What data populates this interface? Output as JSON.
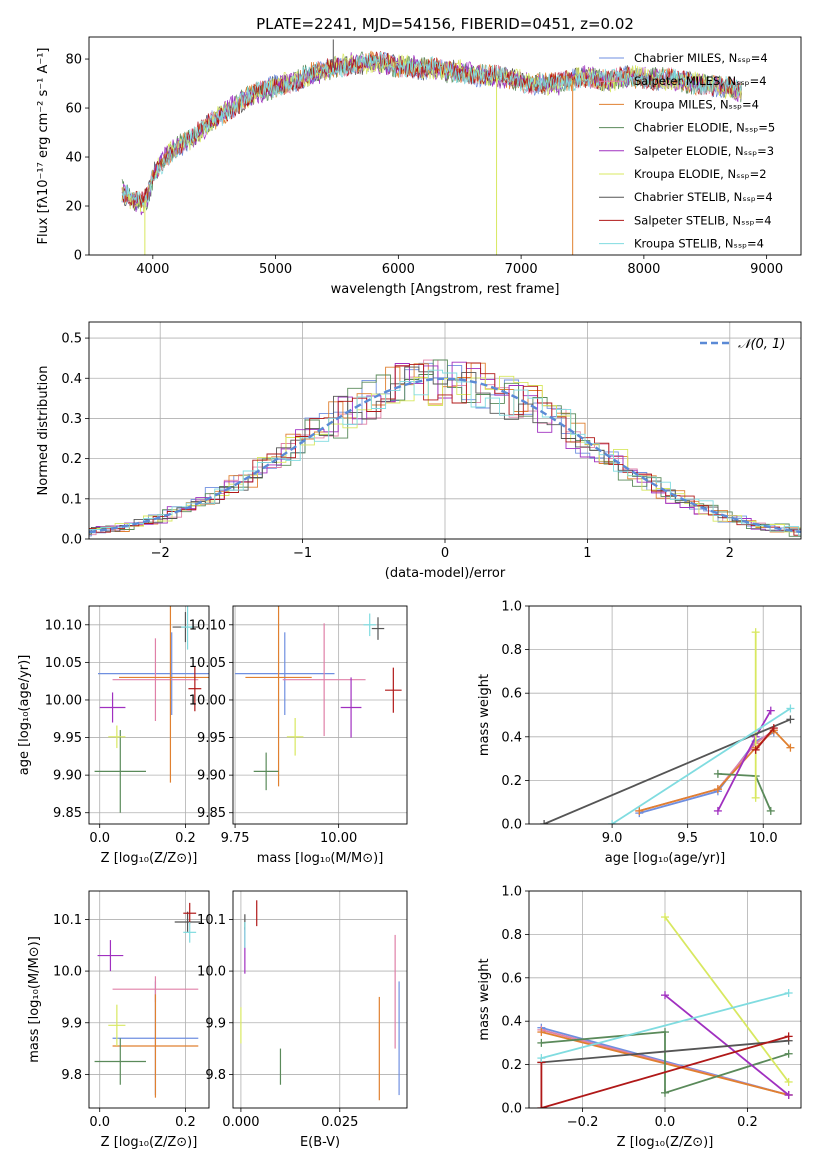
{
  "figure_title": "PLATE=2241, MJD=54156, FIBERID=0451, z=0.02",
  "colors": [
    "#6f8fe0",
    "#e080a8",
    "#e08030",
    "#5a8a5a",
    "#a030c0",
    "#d8e860",
    "#555555",
    "#b01818",
    "#80dce0"
  ],
  "chart_data": [
    {
      "id": "spectrum",
      "type": "line",
      "title": "PLATE=2241, MJD=54156, FIBERID=0451, z=0.02",
      "xlabel": "wavelength [Angstrom, rest frame]",
      "ylabel": "Flux [fλ10⁻¹⁷ erg cm⁻² s⁻¹ A⁻¹]",
      "xlim": [
        3480,
        9280
      ],
      "ylim": [
        0,
        89
      ],
      "xticks": [
        4000,
        5000,
        6000,
        7000,
        8000,
        9000
      ],
      "yticks": [
        0,
        20,
        40,
        60,
        80
      ],
      "legend_position": "top-right",
      "series": [
        {
          "name": "Chabrier MILES, Nₛₛₚ=4"
        },
        {
          "name": "Salpeter MILES, Nₛₛₚ=4"
        },
        {
          "name": "Kroupa MILES, Nₛₛₚ=4"
        },
        {
          "name": "Chabrier ELODIE, Nₛₛₚ=5"
        },
        {
          "name": "Salpeter ELODIE, Nₛₛₚ=3"
        },
        {
          "name": "Kroupa ELODIE, Nₛₛₚ=2"
        },
        {
          "name": "Chabrier STELIB, Nₛₛₚ=4"
        },
        {
          "name": "Salpeter STELIB, Nₛₛₚ=4"
        },
        {
          "name": "Kroupa STELIB, Nₛₛₚ=4"
        }
      ],
      "continuum": {
        "x": [
          3750,
          3850,
          3920,
          3960,
          4000,
          4100,
          4200,
          4300,
          4400,
          4500,
          4600,
          4700,
          4800,
          4900,
          5000,
          5100,
          5200,
          5300,
          5400,
          5500,
          5600,
          5700,
          5800,
          5900,
          6000,
          6100,
          6200,
          6300,
          6400,
          6500,
          6600,
          6700,
          6800,
          6900,
          7000,
          7100,
          7200,
          7300,
          7400,
          7500,
          7600,
          7700,
          7800,
          7900,
          8000,
          8100,
          8200,
          8300,
          8400,
          8500,
          8600,
          8700,
          8800
        ],
        "y": [
          26,
          22,
          21,
          24,
          32,
          40,
          44,
          47,
          51,
          55,
          59,
          62,
          65,
          67,
          69,
          70,
          72,
          74,
          75,
          77,
          78,
          78,
          79,
          78,
          77,
          77,
          76,
          76,
          75,
          75,
          74,
          73,
          73,
          72,
          71,
          70,
          70,
          70,
          71,
          73,
          72,
          71,
          72,
          73,
          72,
          72,
          72,
          71,
          70,
          70,
          69,
          68,
          67
        ]
      },
      "dips": [
        {
          "x": 3935,
          "y": 0
        },
        {
          "x": 6800,
          "y": 0
        },
        {
          "x": 7420,
          "y": 0
        },
        {
          "x": 5470,
          "y": 88
        }
      ]
    },
    {
      "id": "residuals",
      "type": "line",
      "xlabel": "(data-model)/error",
      "ylabel": "Normed distribution",
      "xlim": [
        -2.5,
        2.5
      ],
      "ylim": [
        0,
        0.54
      ],
      "xticks": [
        -2,
        -1,
        0,
        1,
        2
      ],
      "yticks": [
        0.0,
        0.1,
        0.2,
        0.3,
        0.4,
        0.5
      ],
      "legend": "𝒩(0, 1)",
      "legend_position": "top-right",
      "bin_width": 0.1
    },
    {
      "id": "age_vs_Z",
      "type": "scatter",
      "xlabel": "Z [log₁₀(Z/Z⊙)]",
      "ylabel": "age  [log₁₀(age/yr)]",
      "xlim": [
        -0.025,
        0.255
      ],
      "ylim": [
        9.835,
        10.125
      ],
      "xticks": [
        0.0,
        0.2
      ],
      "yticks": [
        9.85,
        9.9,
        9.95,
        10.0,
        10.05,
        10.1
      ],
      "points": [
        {
          "x": 0.168,
          "y": 10.035,
          "xerr": 0.172,
          "yerr": 0.055
        },
        {
          "x": 0.13,
          "y": 10.027,
          "xerr": 0.1,
          "yerr": 0.055
        },
        {
          "x": 0.165,
          "y": 10.03,
          "xerr": 0.12,
          "yerr": 0.14
        },
        {
          "x": 0.048,
          "y": 9.905,
          "xerr": 0.06,
          "yerr": 0.055
        },
        {
          "x": 0.03,
          "y": 9.99,
          "xerr": 0.03,
          "yerr": 0.02
        },
        {
          "x": 0.04,
          "y": 9.951,
          "xerr": 0.02,
          "yerr": 0.015
        },
        {
          "x": 0.2,
          "y": 10.097,
          "xerr": 0.03,
          "yerr": 0.02
        },
        {
          "x": 0.222,
          "y": 10.015,
          "xerr": 0.015,
          "yerr": 0.03
        },
        {
          "x": 0.205,
          "y": 10.097,
          "xerr": 0.015,
          "yerr": 0.03
        }
      ]
    },
    {
      "id": "age_vs_mass",
      "type": "scatter",
      "xlabel": "mass [log₁₀(M/M⊙)]",
      "ylabel": "",
      "xlim": [
        9.745,
        10.165
      ],
      "ylim": [
        9.835,
        10.125
      ],
      "xticks": [
        9.75,
        10.0
      ],
      "yticks": [
        9.85,
        9.9,
        9.95,
        10.0,
        10.05,
        10.1
      ],
      "points": [
        {
          "x": 9.87,
          "y": 10.035,
          "xerr": 0.12,
          "yerr": 0.055
        },
        {
          "x": 9.965,
          "y": 10.027,
          "xerr": 0.1,
          "yerr": 0.075
        },
        {
          "x": 9.855,
          "y": 10.03,
          "xerr": 0.08,
          "yerr": 0.145
        },
        {
          "x": 9.825,
          "y": 9.905,
          "xerr": 0.03,
          "yerr": 0.025
        },
        {
          "x": 10.03,
          "y": 9.99,
          "xerr": 0.025,
          "yerr": 0.04
        },
        {
          "x": 9.895,
          "y": 9.951,
          "xerr": 0.02,
          "yerr": 0.025
        },
        {
          "x": 10.095,
          "y": 10.095,
          "xerr": 0.015,
          "yerr": 0.015
        },
        {
          "x": 10.132,
          "y": 10.013,
          "xerr": 0.02,
          "yerr": 0.03
        },
        {
          "x": 10.075,
          "y": 10.1,
          "xerr": 0.015,
          "yerr": 0.015
        }
      ]
    },
    {
      "id": "weight_vs_age",
      "type": "line",
      "xlabel": "age  [log₁₀(age/yr)]",
      "ylabel": "mass weight",
      "xlim": [
        8.45,
        10.25
      ],
      "ylim": [
        0,
        1
      ],
      "xticks": [
        9.0,
        9.5,
        10.0
      ],
      "yticks": [
        0.0,
        0.2,
        0.4,
        0.6,
        0.8,
        1.0
      ],
      "series": [
        {
          "x": [
            9.18,
            9.7,
            9.95,
            10.07
          ],
          "y": [
            0.05,
            0.15,
            0.38,
            0.42
          ]
        },
        {
          "x": [
            9.18,
            9.7,
            9.95,
            10.07
          ],
          "y": [
            0.06,
            0.16,
            0.37,
            0.43
          ]
        },
        {
          "x": [
            9.18,
            9.7,
            9.95,
            10.07,
            10.18
          ],
          "y": [
            0.06,
            0.16,
            0.35,
            0.43,
            0.35
          ]
        },
        {
          "x": [
            9.7,
            9.95,
            10.05
          ],
          "y": [
            0.23,
            0.22,
            0.06
          ]
        },
        {
          "x": [
            9.7,
            9.95,
            10.05
          ],
          "y": [
            0.06,
            0.4,
            0.52
          ]
        },
        {
          "x": [
            9.95,
            9.95
          ],
          "y": [
            0.12,
            0.88
          ]
        },
        {
          "x": [
            8.55,
            10.18
          ],
          "y": [
            0.0,
            0.48
          ]
        },
        {
          "x": [
            9.95,
            10.07
          ],
          "y": [
            0.34,
            0.44
          ]
        },
        {
          "x": [
            9.0,
            10.18
          ],
          "y": [
            0.0,
            0.53
          ]
        }
      ]
    },
    {
      "id": "mass_vs_Z",
      "type": "scatter",
      "xlabel": "Z [log₁₀(Z/Z⊙)]",
      "ylabel": "mass [log₁₀(M/M⊙)]",
      "xlim": [
        -0.025,
        0.255
      ],
      "ylim": [
        9.735,
        10.155
      ],
      "xticks": [
        0.0,
        0.2
      ],
      "yticks": [
        9.8,
        9.9,
        10.0,
        10.1
      ],
      "points": [
        {
          "x": 0.13,
          "y": 9.87,
          "xerr": 0.1,
          "yerr": 0.11
        },
        {
          "x": 0.13,
          "y": 9.965,
          "xerr": 0.1,
          "yerr": 0.025
        },
        {
          "x": 0.13,
          "y": 9.855,
          "xerr": 0.1,
          "yerr": 0.1
        },
        {
          "x": 0.048,
          "y": 9.825,
          "xerr": 0.06,
          "yerr": 0.045
        },
        {
          "x": 0.025,
          "y": 10.03,
          "xerr": 0.03,
          "yerr": 0.03
        },
        {
          "x": 0.04,
          "y": 9.895,
          "xerr": 0.02,
          "yerr": 0.04
        },
        {
          "x": 0.205,
          "y": 10.095,
          "xerr": 0.03,
          "yerr": 0.02
        },
        {
          "x": 0.21,
          "y": 10.112,
          "xerr": 0.015,
          "yerr": 0.02
        },
        {
          "x": 0.21,
          "y": 10.075,
          "xerr": 0.015,
          "yerr": 0.02
        }
      ]
    },
    {
      "id": "mass_vs_EBV",
      "type": "scatter",
      "xlabel": "E(B-V)",
      "ylabel": "",
      "xlim": [
        -0.002,
        0.042
      ],
      "ylim": [
        9.735,
        10.155
      ],
      "xticks": [
        0.0,
        0.025
      ],
      "yticks": [
        9.8,
        9.9,
        10.0,
        10.1
      ],
      "points": [
        {
          "x": 0.04,
          "y": 9.87,
          "yerr": 0.11
        },
        {
          "x": 0.039,
          "y": 9.96,
          "yerr": 0.11
        },
        {
          "x": 0.035,
          "y": 9.85,
          "yerr": 0.1
        },
        {
          "x": 0.01,
          "y": 9.815,
          "yerr": 0.035
        },
        {
          "x": 0.001,
          "y": 10.04,
          "yerr": 0.045
        },
        {
          "x": 0.0,
          "y": 9.895,
          "yerr": 0.035
        },
        {
          "x": 0.001,
          "y": 10.095,
          "yerr": 0.015
        },
        {
          "x": 0.004,
          "y": 10.112,
          "yerr": 0.025
        },
        {
          "x": 0.001,
          "y": 10.07,
          "yerr": 0.025
        }
      ]
    },
    {
      "id": "weight_vs_Z",
      "type": "line",
      "xlabel": "Z [log₁₀(Z/Z⊙)]",
      "ylabel": "mass weight",
      "xlim": [
        -0.33,
        0.33
      ],
      "ylim": [
        0,
        1
      ],
      "xticks": [
        -0.2,
        0.0,
        0.2
      ],
      "yticks": [
        0.0,
        0.2,
        0.4,
        0.6,
        0.8,
        1.0
      ],
      "series": [
        {
          "x": [
            -0.3,
            0.3
          ],
          "y": [
            0.37,
            0.06
          ]
        },
        {
          "x": [
            -0.3,
            0.3
          ],
          "y": [
            0.36,
            0.06
          ]
        },
        {
          "x": [
            -0.3,
            0.3
          ],
          "y": [
            0.35,
            0.06
          ]
        },
        {
          "x": [
            -0.3,
            0.0,
            0.0,
            0.3
          ],
          "y": [
            0.3,
            0.35,
            0.07,
            0.25
          ]
        },
        {
          "x": [
            0.0,
            0.3
          ],
          "y": [
            0.52,
            0.06
          ]
        },
        {
          "x": [
            0.0,
            0.3
          ],
          "y": [
            0.88,
            0.12
          ]
        },
        {
          "x": [
            -0.3,
            0.3
          ],
          "y": [
            0.21,
            0.31
          ]
        },
        {
          "x": [
            -0.3,
            -0.3,
            0.3
          ],
          "y": [
            0.21,
            0.0,
            0.33
          ]
        },
        {
          "x": [
            -0.3,
            0.3
          ],
          "y": [
            0.23,
            0.53
          ]
        }
      ]
    }
  ]
}
